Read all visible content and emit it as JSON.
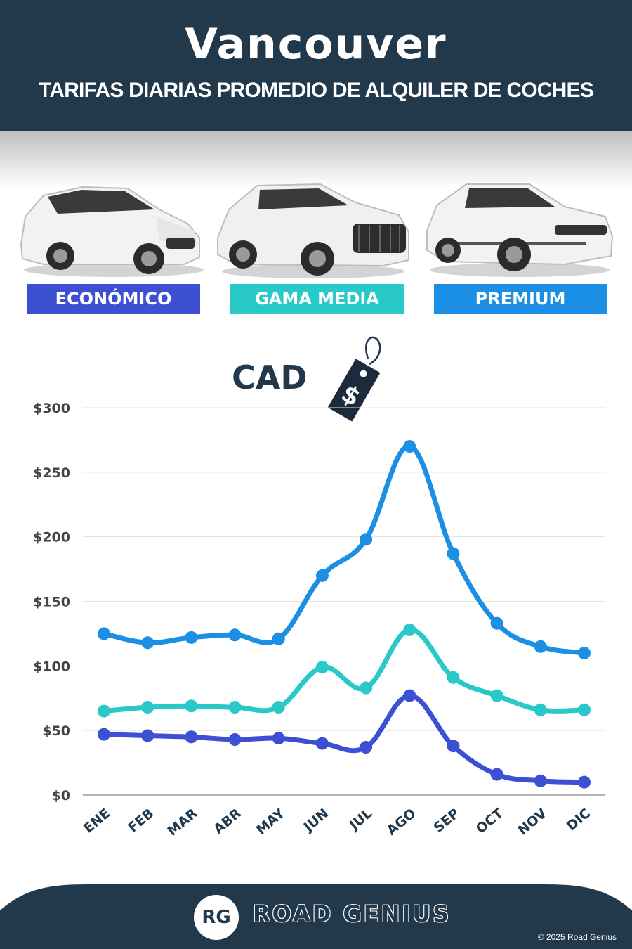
{
  "header": {
    "title": "Vancouver",
    "subtitle": "TARIFAS DIARIAS PROMEDIO DE ALQUILER DE COCHES"
  },
  "categories": [
    {
      "label": "ECONÓMICO",
      "color": "#3d50d4"
    },
    {
      "label": "GAMA MEDIA",
      "color": "#29c8c9"
    },
    {
      "label": "PREMIUM",
      "color": "#1a8fe3"
    }
  ],
  "currency": {
    "label": "CAD",
    "tag_symbol": "$"
  },
  "chart_data": {
    "type": "line",
    "categories": [
      "ENE",
      "FEB",
      "MAR",
      "ABR",
      "MAY",
      "JUN",
      "JUL",
      "AGO",
      "SEP",
      "OCT",
      "NOV",
      "DIC"
    ],
    "ylim": [
      0,
      300
    ],
    "yticks": [
      0,
      50,
      100,
      150,
      200,
      250,
      300
    ],
    "ytick_labels": [
      "$0",
      "$50",
      "$100",
      "$150",
      "$200",
      "$250",
      "$300"
    ],
    "grid": true,
    "series": [
      {
        "name": "PREMIUM",
        "color": "#1a8fe3",
        "values": [
          125,
          118,
          122,
          124,
          121,
          170,
          198,
          270,
          187,
          133,
          115,
          110
        ]
      },
      {
        "name": "GAMA MEDIA",
        "color": "#29c8c9",
        "values": [
          65,
          68,
          69,
          68,
          68,
          99,
          83,
          128,
          91,
          77,
          66,
          66
        ]
      },
      {
        "name": "ECONÓMICO",
        "color": "#3d50d4",
        "values": [
          47,
          46,
          45,
          43,
          44,
          40,
          37,
          77,
          38,
          16,
          11,
          10
        ]
      }
    ]
  },
  "footer": {
    "logo_initials": "RG",
    "brand": "ROAD GENIUS",
    "copyright": "© 2025 Road Genius",
    "color": "#22394c"
  }
}
